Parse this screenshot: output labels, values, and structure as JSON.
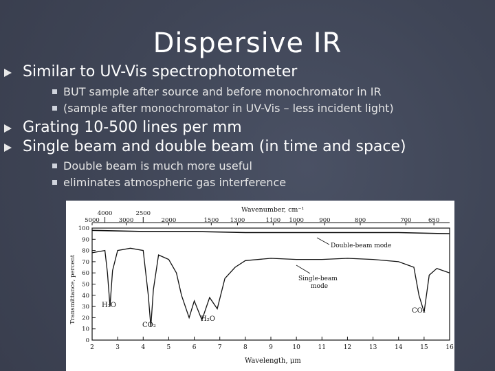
{
  "slide": {
    "title": "Dispersive IR",
    "bullets": [
      {
        "text": "Similar to UV-Vis spectrophotometer",
        "subs": [
          "BUT sample after source and before monochromator in IR",
          "(sample after monochromator in UV-Vis – less incident light)"
        ]
      },
      {
        "text": "Grating 10-500 lines per mm",
        "subs": []
      },
      {
        "text": "Single beam and double beam (in time and space)",
        "subs": [
          "Double beam is much more useful",
          "eliminates atmospheric gas interference"
        ]
      }
    ]
  },
  "figure": {
    "top_axis_label": "Wavenumber, cm⁻¹",
    "bottom_axis_label": "Wavelength, μm",
    "y_axis_label": "Transmittance, percent",
    "top_ticks": [
      "4000",
      "2500",
      "5000",
      "3000",
      "2000",
      "1500",
      "1300",
      "1100",
      "1000",
      "900",
      "800",
      "700",
      "650"
    ],
    "bottom_ticks": [
      "2",
      "3",
      "4",
      "5",
      "6",
      "7",
      "8",
      "9",
      "10",
      "11",
      "12",
      "13",
      "14",
      "15",
      "16"
    ],
    "y_ticks": [
      "100",
      "90",
      "80",
      "70",
      "60",
      "50",
      "40",
      "30",
      "20",
      "10",
      "0"
    ],
    "annotations": {
      "double_beam": "Double-beam mode",
      "single_beam_1": "Single-beam",
      "single_beam_2": "mode",
      "h2o_a": "H₂O",
      "co2_a": "CO₂",
      "h2o_b": "H₂O",
      "co2_b": "CO₂"
    }
  },
  "chart_data": {
    "type": "line",
    "title": "",
    "xlabel": "Wavelength, μm",
    "ylabel": "Transmittance, percent",
    "xlim": [
      2,
      16
    ],
    "ylim": [
      0,
      100
    ],
    "series": [
      {
        "name": "Double-beam mode",
        "x": [
          2.0,
          4.0,
          6.0,
          8.0,
          10.0,
          12.0,
          14.0,
          16.0
        ],
        "y": [
          98,
          97,
          97,
          96,
          96,
          96,
          96,
          95
        ]
      },
      {
        "name": "Single-beam mode",
        "x": [
          2.0,
          2.5,
          2.6,
          2.7,
          2.8,
          3.0,
          3.5,
          4.0,
          4.2,
          4.3,
          4.4,
          4.6,
          5.0,
          5.3,
          5.5,
          5.8,
          6.0,
          6.3,
          6.6,
          6.9,
          7.2,
          7.6,
          8.0,
          9.0,
          10.0,
          11.0,
          12.0,
          13.0,
          14.0,
          14.6,
          14.8,
          15.0,
          15.2,
          15.5,
          16.0
        ],
        "y": [
          78,
          80,
          60,
          30,
          62,
          80,
          82,
          80,
          40,
          12,
          45,
          76,
          72,
          60,
          40,
          20,
          35,
          18,
          38,
          28,
          55,
          65,
          71,
          73,
          72,
          72,
          73,
          72,
          70,
          65,
          40,
          25,
          58,
          64,
          60
        ]
      }
    ],
    "top_axis": {
      "label": "Wavenumber, cm⁻¹",
      "ticks": [
        5000,
        4000,
        3000,
        2500,
        2000,
        1500,
        1300,
        1100,
        1000,
        900,
        800,
        700,
        650
      ]
    },
    "grid": false
  }
}
